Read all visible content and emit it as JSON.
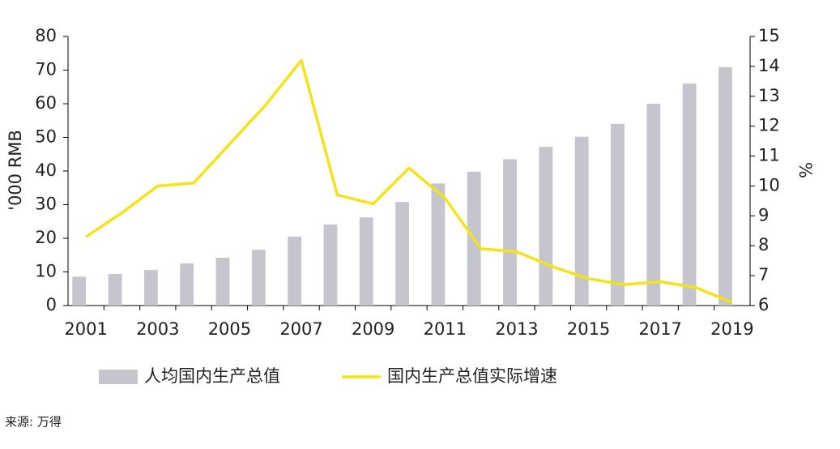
{
  "chart_data": {
    "type": "bar_line",
    "categories": [
      "2001",
      null,
      "2003",
      null,
      "2005",
      null,
      "2007",
      null,
      "2009",
      null,
      "2011",
      null,
      "2013",
      null,
      "2015",
      null,
      "2017",
      null,
      "2019"
    ],
    "series": [
      {
        "name": "人均国内生产总值",
        "type": "bar",
        "color": "#c5c5cd",
        "axis": "y",
        "values": [
          8.6,
          9.4,
          10.6,
          12.5,
          14.2,
          16.6,
          20.5,
          24.1,
          26.2,
          30.8,
          36.3,
          39.8,
          43.5,
          47.2,
          50.2,
          54.0,
          60.0,
          66.0,
          70.9
        ]
      },
      {
        "name": "国内生产总值实际增速",
        "type": "line",
        "color": "#f4e21a",
        "axis": "y2",
        "values": [
          8.3,
          9.1,
          10.0,
          10.1,
          11.4,
          12.7,
          14.2,
          9.7,
          9.4,
          10.6,
          9.6,
          7.9,
          7.8,
          7.3,
          6.9,
          6.7,
          6.8,
          6.6,
          6.1
        ]
      }
    ],
    "ylabel": "'000 RMB",
    "y2label": "%",
    "ylim": [
      0,
      80
    ],
    "yticks": [
      0,
      10,
      20,
      30,
      40,
      50,
      60,
      70,
      80
    ],
    "y2lim": [
      6,
      15
    ],
    "y2ticks": [
      6,
      7,
      8,
      9,
      10,
      11,
      12,
      13,
      14,
      15
    ],
    "legend": "bottom",
    "source": "来源: 万得"
  }
}
